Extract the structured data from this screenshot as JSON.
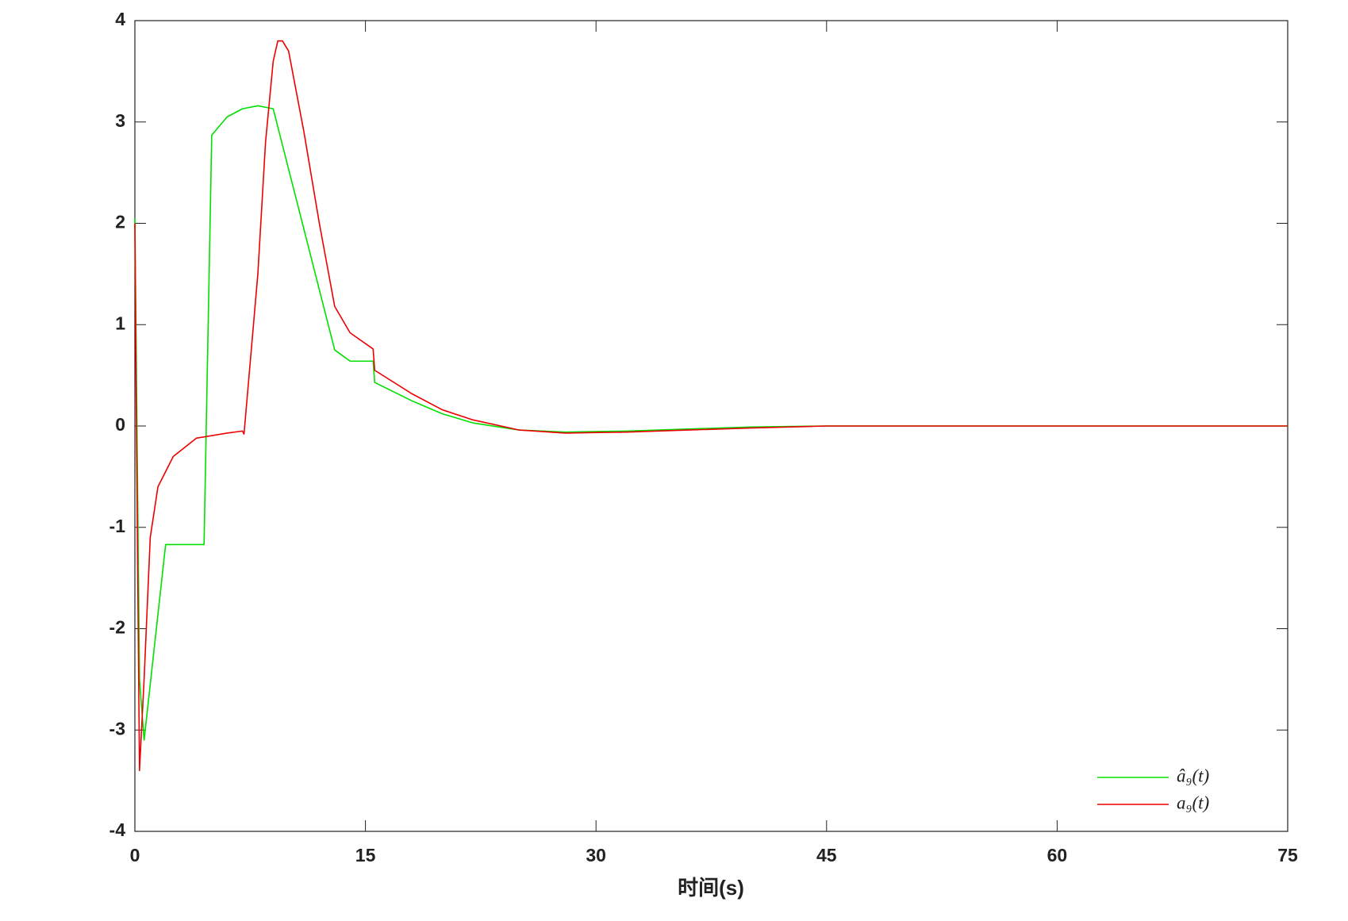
{
  "chart_data": {
    "type": "line",
    "xlabel": "时间(s)",
    "xlim": [
      0,
      75
    ],
    "xticks": [
      0,
      15,
      30,
      45,
      60,
      75
    ],
    "ylim": [
      -4,
      4
    ],
    "yticks": [
      -4,
      -3,
      -2,
      -1,
      0,
      1,
      2,
      3,
      4
    ],
    "grid": false,
    "legend": "lower right",
    "series": [
      {
        "name": "â₉(t)",
        "color": "#00e000",
        "x": [
          0,
          0.3,
          0.6,
          2.0,
          4.5,
          5.0,
          6,
          7,
          8,
          9,
          13,
          14,
          15.5,
          15.6,
          18,
          20,
          22,
          25,
          28,
          32,
          36,
          40,
          45,
          60,
          75
        ],
        "values": [
          2.05,
          -2.5,
          -3.1,
          -1.17,
          -1.17,
          2.87,
          3.05,
          3.13,
          3.16,
          3.13,
          0.75,
          0.64,
          0.64,
          0.43,
          0.25,
          0.12,
          0.03,
          -0.04,
          -0.06,
          -0.05,
          -0.03,
          -0.01,
          0,
          0,
          0
        ]
      },
      {
        "name": "a₉(t)",
        "color": "#ee0000",
        "x": [
          0,
          0.1,
          0.3,
          0.6,
          1,
          1.5,
          2.5,
          4,
          6,
          7,
          7.1,
          8,
          8.5,
          9,
          9.3,
          9.6,
          10,
          11,
          12,
          13,
          14,
          15.5,
          15.6,
          18,
          20,
          22,
          25,
          28,
          32,
          36,
          40,
          45,
          75
        ],
        "values": [
          2.0,
          0,
          -3.4,
          -2.5,
          -1.1,
          -0.6,
          -0.3,
          -0.12,
          -0.07,
          -0.05,
          -0.08,
          1.5,
          2.8,
          3.6,
          3.8,
          3.8,
          3.7,
          2.9,
          2.0,
          1.18,
          0.92,
          0.76,
          0.55,
          0.32,
          0.16,
          0.06,
          -0.04,
          -0.07,
          -0.06,
          -0.04,
          -0.02,
          0,
          0
        ]
      }
    ]
  }
}
